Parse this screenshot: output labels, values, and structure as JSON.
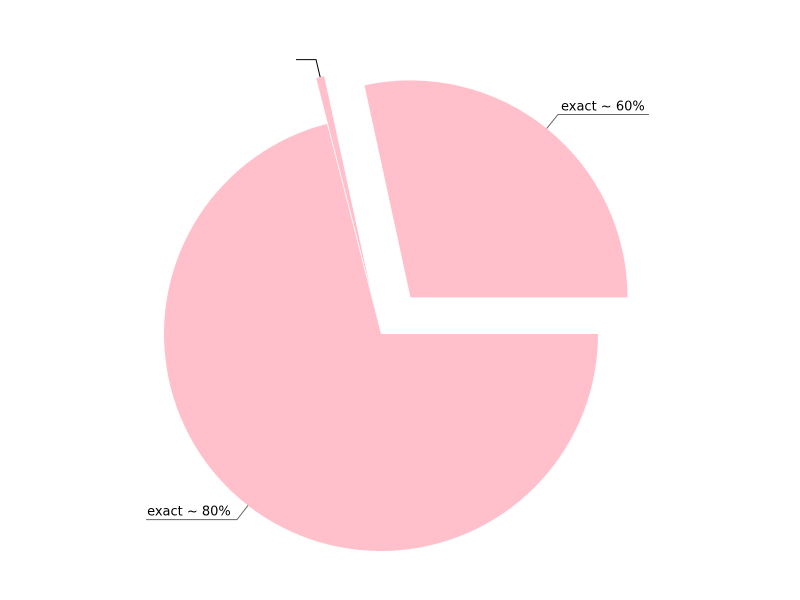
{
  "chart_data": {
    "type": "pie",
    "title": "",
    "slices": [
      {
        "label": "exact ~ 60%",
        "value": 28.4,
        "exploded": true
      },
      {
        "label": "",
        "value": 0.6,
        "exploded": true
      },
      {
        "label": "exact ~ 80%",
        "value": 71.0,
        "exploded": false
      }
    ],
    "colors": {
      "slice": "#ffc0cb",
      "leader_line": "#000000",
      "background": "#ffffff"
    }
  }
}
